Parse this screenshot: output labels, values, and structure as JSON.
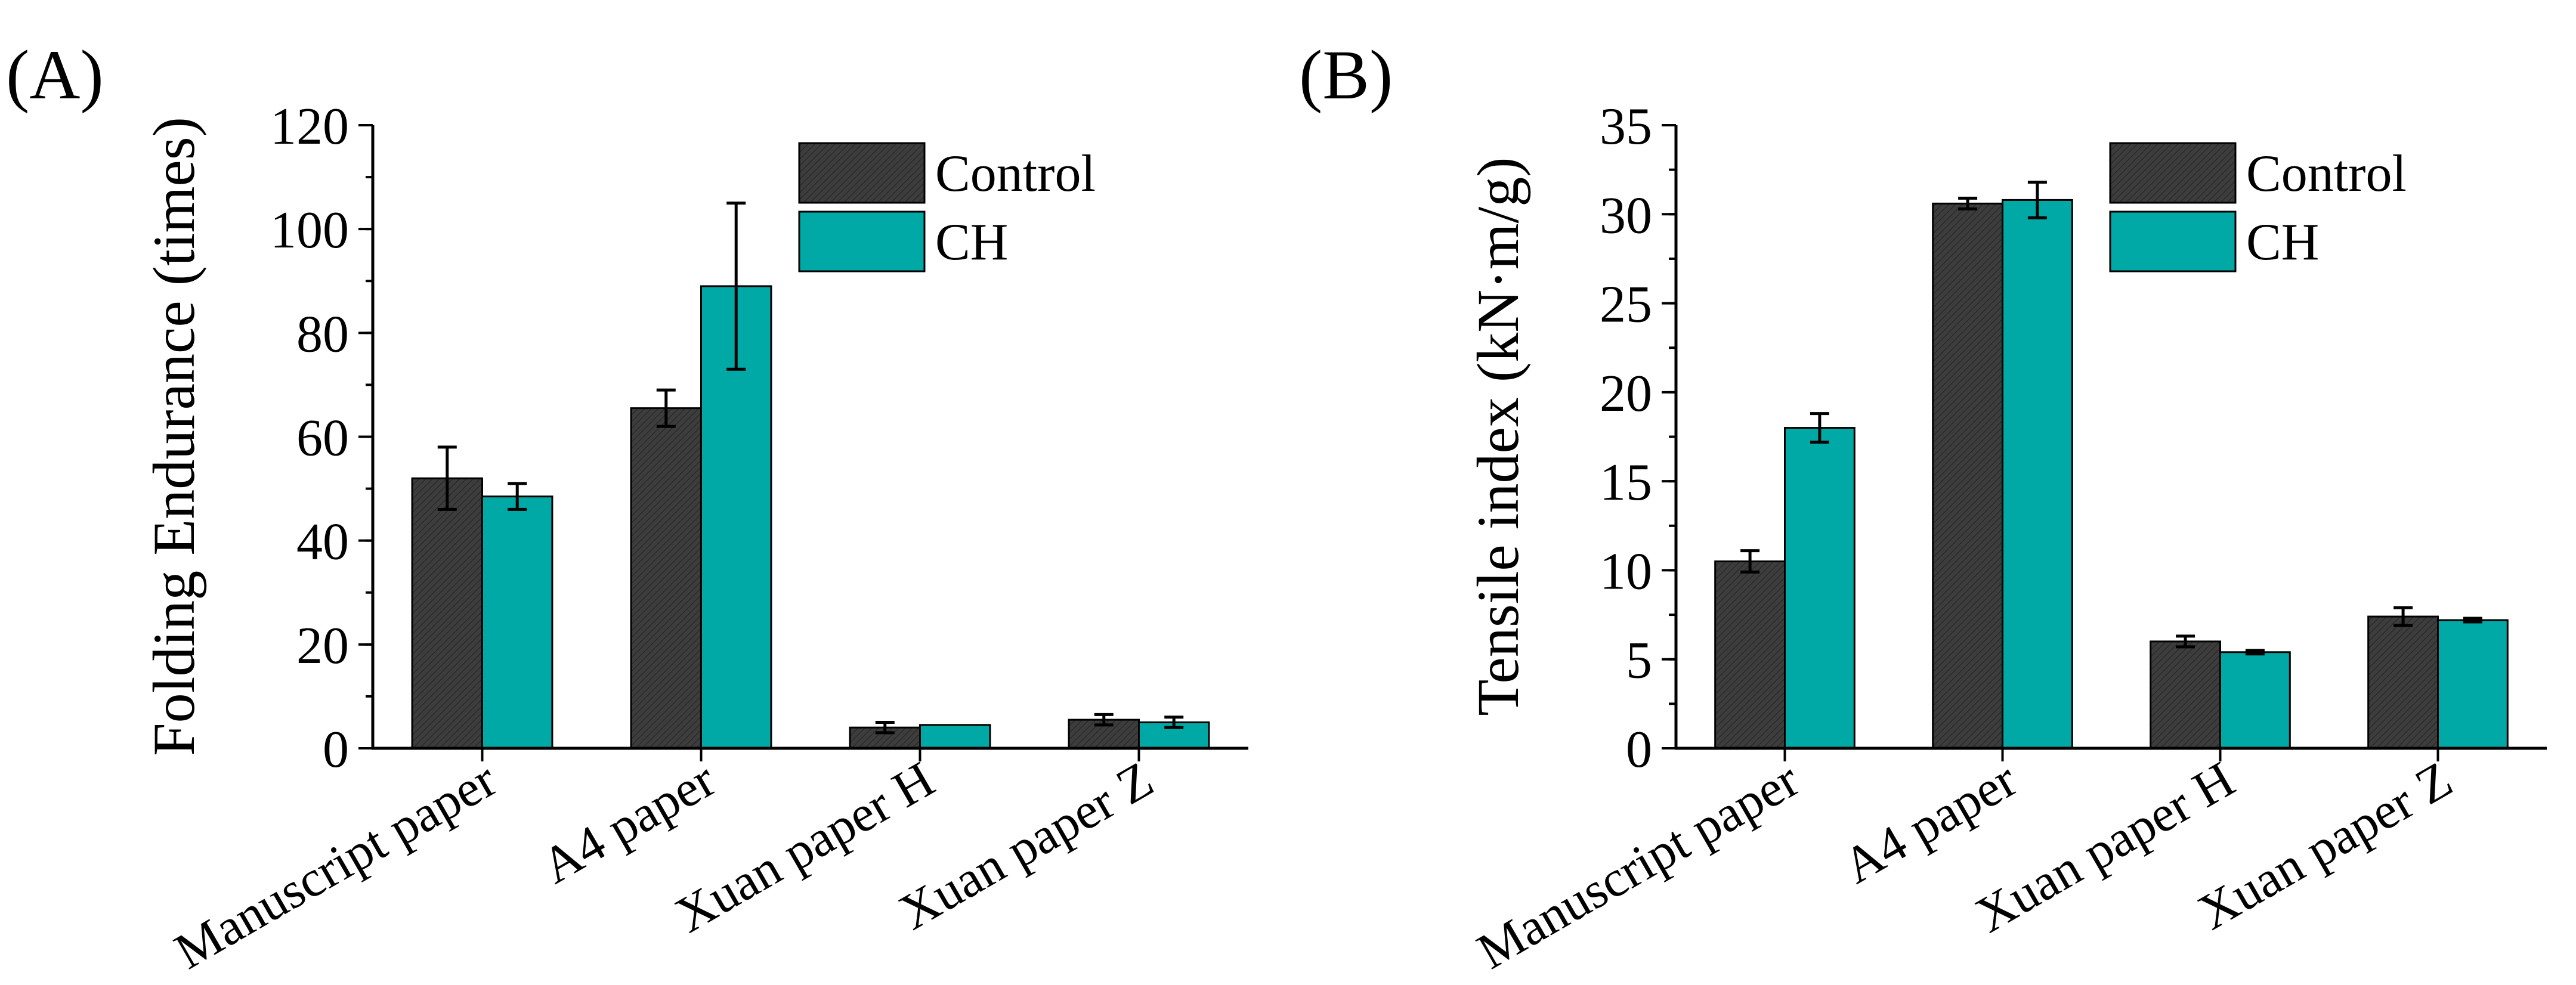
{
  "chart_data": [
    {
      "panel_label": "(A)",
      "type": "bar",
      "title": "",
      "xlabel": "",
      "ylabel": "Folding Endurance (times)",
      "categories": [
        "Manuscript paper",
        "A4 paper",
        "Xuan paper H",
        "Xuan paper Z"
      ],
      "series": [
        {
          "name": "Control",
          "values": [
            52,
            65.5,
            4,
            5.5
          ],
          "errors": [
            6,
            3.5,
            1,
            1
          ],
          "color": "#3d3d3d"
        },
        {
          "name": "CH",
          "values": [
            48.5,
            89,
            4.5,
            5
          ],
          "errors": [
            2.5,
            16,
            0,
            1
          ],
          "color": "#00a9a5"
        }
      ],
      "ylim": [
        0,
        120
      ],
      "yticks": [
        0,
        20,
        40,
        60,
        80,
        100,
        120
      ],
      "ytick_labels": [
        "0",
        "20",
        "40",
        "60",
        "80",
        "100",
        "120"
      ],
      "minor_step": 10,
      "legend": "top-right",
      "grid": false
    },
    {
      "panel_label": "(B)",
      "type": "bar",
      "title": "",
      "xlabel": "",
      "ylabel": "Tensile index (kN·m/g)",
      "categories": [
        "Manuscript paper",
        "A4 paper",
        "Xuan paper H",
        "Xuan paper Z"
      ],
      "series": [
        {
          "name": "Control",
          "values": [
            10.5,
            30.6,
            6.0,
            7.4
          ],
          "errors": [
            0.6,
            0.3,
            0.3,
            0.5
          ],
          "color": "#3d3d3d"
        },
        {
          "name": "CH",
          "values": [
            18.0,
            30.8,
            5.4,
            7.2
          ],
          "errors": [
            0.8,
            1.0,
            0.1,
            0.1
          ],
          "color": "#00a9a5"
        }
      ],
      "ylim": [
        0,
        35
      ],
      "yticks": [
        0,
        5,
        10,
        15,
        20,
        25,
        30,
        35
      ],
      "ytick_labels": [
        "0",
        "5",
        "10",
        "15",
        "20",
        "25",
        "30",
        "35"
      ],
      "minor_step": 2.5,
      "legend": "top-right",
      "grid": false
    }
  ]
}
